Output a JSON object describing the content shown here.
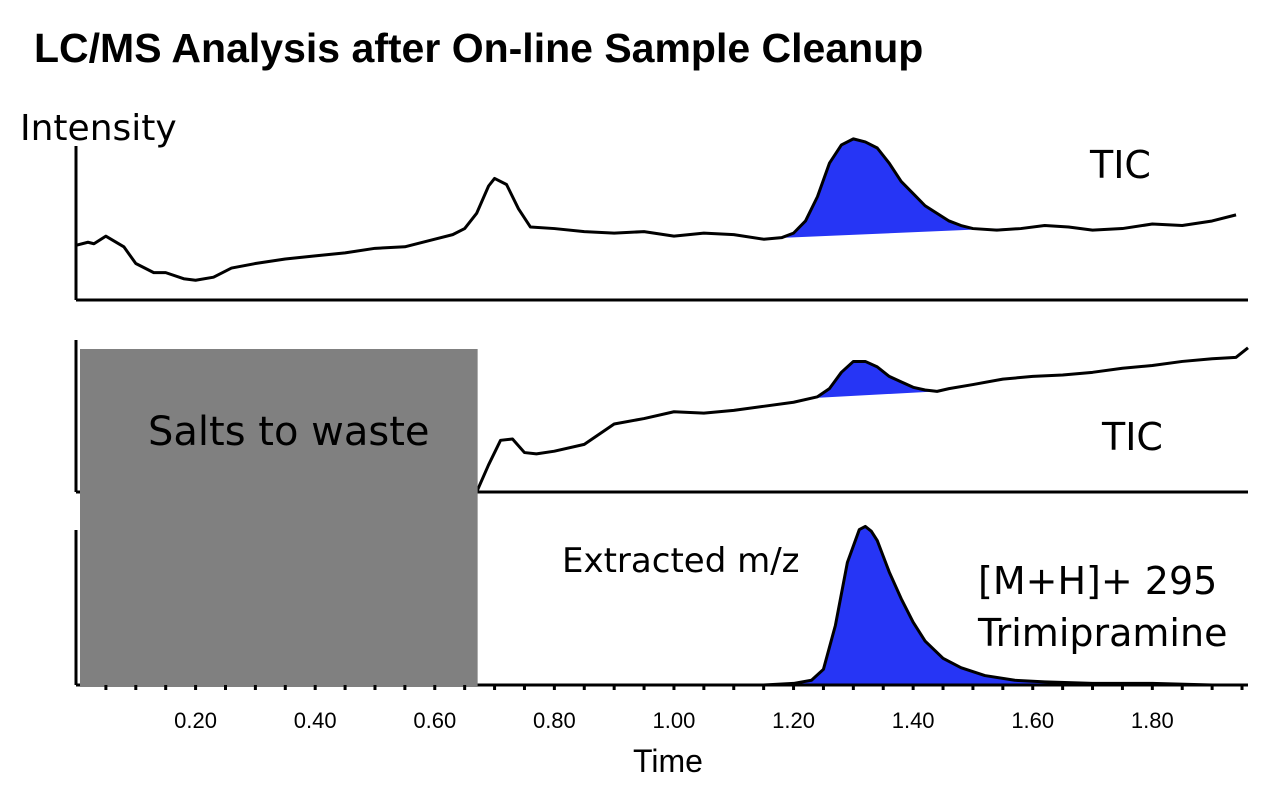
{
  "chart_data": {
    "type": "line",
    "title": "LC/MS Analysis after On-line Sample Cleanup",
    "ylabel": "Intensity",
    "xlabel": "Time",
    "xlim": [
      0.0,
      1.96
    ],
    "x_ticks": [
      "0.20",
      "0.40",
      "0.60",
      "0.80",
      "1.00",
      "1.20",
      "1.40",
      "1.60",
      "1.80"
    ],
    "x_tick_values": [
      0.2,
      0.4,
      0.6,
      0.8,
      1.0,
      1.2,
      1.4,
      1.6,
      1.8
    ],
    "grid": false,
    "colors": {
      "peak_fill": "#2635f5",
      "waste_box": "#808080",
      "line": "#000000"
    },
    "waste_box": {
      "label": "Salts to waste",
      "x_start": 0.0,
      "x_end": 0.67
    },
    "panels": [
      {
        "name": "TIC",
        "label": "TIC",
        "ylim": [
          0,
          100
        ],
        "x": [
          0.0,
          0.02,
          0.03,
          0.05,
          0.08,
          0.1,
          0.13,
          0.15,
          0.18,
          0.2,
          0.23,
          0.26,
          0.3,
          0.35,
          0.4,
          0.45,
          0.5,
          0.55,
          0.6,
          0.63,
          0.65,
          0.67,
          0.69,
          0.7,
          0.72,
          0.74,
          0.76,
          0.8,
          0.85,
          0.9,
          0.95,
          1.0,
          1.05,
          1.1,
          1.15,
          1.18,
          1.2,
          1.22,
          1.24,
          1.26,
          1.28,
          1.3,
          1.32,
          1.34,
          1.36,
          1.38,
          1.4,
          1.42,
          1.44,
          1.46,
          1.48,
          1.5,
          1.54,
          1.58,
          1.62,
          1.66,
          1.7,
          1.75,
          1.8,
          1.85,
          1.9,
          1.94
        ],
        "y": [
          36,
          38,
          37,
          42,
          35,
          24,
          18,
          18,
          14,
          13,
          15,
          21,
          24,
          27,
          29,
          31,
          34,
          35,
          40,
          43,
          47,
          57,
          75,
          80,
          76,
          60,
          48,
          47,
          45,
          44,
          45,
          42,
          44,
          43,
          40,
          41,
          44,
          52,
          68,
          90,
          102,
          106,
          104,
          100,
          90,
          78,
          70,
          62,
          57,
          52,
          49,
          47,
          46,
          47,
          49,
          48,
          46,
          47,
          50,
          49,
          52,
          56
        ],
        "peak_range": [
          1.17,
          1.6
        ]
      },
      {
        "name": "TIC",
        "label": "TIC",
        "ylim": [
          0,
          100
        ],
        "x": [
          0.67,
          0.69,
          0.71,
          0.73,
          0.75,
          0.77,
          0.8,
          0.85,
          0.9,
          0.95,
          1.0,
          1.05,
          1.1,
          1.15,
          1.2,
          1.24,
          1.26,
          1.28,
          1.3,
          1.32,
          1.34,
          1.36,
          1.38,
          1.4,
          1.42,
          1.44,
          1.46,
          1.5,
          1.55,
          1.6,
          1.65,
          1.7,
          1.75,
          1.8,
          1.85,
          1.9,
          1.94,
          1.96
        ],
        "y": [
          0,
          20,
          38,
          39,
          29,
          28,
          30,
          35,
          50,
          54,
          59,
          58,
          60,
          63,
          66,
          70,
          76,
          88,
          96,
          96,
          92,
          85,
          81,
          77,
          75,
          74,
          76,
          79,
          83,
          85,
          86,
          88,
          91,
          93,
          96,
          98,
          99,
          106
        ],
        "peak_range": [
          1.23,
          1.44
        ]
      },
      {
        "name": "Extracted m/z",
        "label": "Extracted m/z",
        "ion_label": "[M+H]+ 295",
        "compound": "Trimipramine",
        "ylim": [
          0,
          100
        ],
        "x": [
          0.67,
          0.8,
          1.0,
          1.15,
          1.2,
          1.23,
          1.25,
          1.27,
          1.29,
          1.31,
          1.32,
          1.33,
          1.34,
          1.35,
          1.36,
          1.38,
          1.4,
          1.42,
          1.45,
          1.48,
          1.52,
          1.57,
          1.62,
          1.7,
          1.8,
          1.9,
          1.96
        ],
        "y": [
          0,
          0,
          0,
          0,
          1,
          3,
          10,
          38,
          78,
          99,
          101,
          98,
          92,
          82,
          72,
          55,
          40,
          28,
          17,
          11,
          6,
          3,
          2,
          1,
          1,
          0,
          0
        ],
        "peak_range": [
          1.2,
          1.75
        ]
      }
    ]
  }
}
